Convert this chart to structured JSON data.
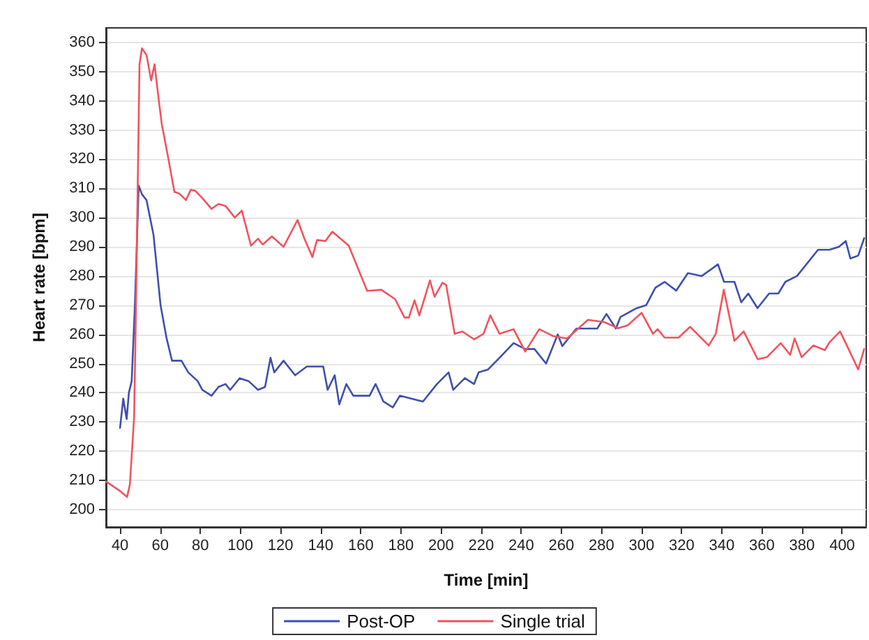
{
  "chart_data": {
    "type": "line",
    "xlabel": "Time [min]",
    "ylabel": "Heart rate [bpm]",
    "xlim": [
      33,
      412
    ],
    "xticks": [
      40,
      60,
      80,
      100,
      120,
      140,
      160,
      180,
      200,
      220,
      240,
      260,
      280,
      300,
      320,
      340,
      360,
      380,
      400
    ],
    "ylim": [
      194,
      365
    ],
    "yticks": [
      200,
      210,
      220,
      230,
      240,
      250,
      260,
      270,
      280,
      290,
      300,
      310,
      320,
      330,
      340,
      350,
      360
    ],
    "grid": "y",
    "legend": "bottom",
    "marker": "none",
    "line_style": "solid",
    "series": [
      {
        "name": "Post-OP",
        "color": "#3f4fae",
        "x": [
          40,
          41.6,
          43.3,
          44.4,
          45.8,
          47.4,
          49.3,
          50.9,
          53.2,
          56.7,
          60.2,
          63.1,
          65.9,
          70.6,
          74,
          78.7,
          81,
          85.6,
          89.1,
          92.6,
          94.9,
          99.6,
          104.1,
          108.8,
          112.3,
          115,
          116.9,
          121.5,
          127.3,
          133.1,
          141.3,
          143.5,
          147,
          149.3,
          152.8,
          156.3,
          164.4,
          167.4,
          171.3,
          176,
          179.5,
          185.2,
          191,
          198,
          203.8,
          206.1,
          211.9,
          216.5,
          218.8,
          223.5,
          229.2,
          236.2,
          242,
          246.6,
          252.4,
          258.2,
          260.5,
          267.5,
          272,
          277.9,
          282.5,
          287.2,
          289.5,
          297.6,
          302.3,
          306.9,
          311.5,
          317.3,
          323.1,
          330,
          338.1,
          341.1,
          346.3,
          349.7,
          353.2,
          357.8,
          363.6,
          368.2,
          371.7,
          377.5,
          381,
          388,
          393.7,
          398.4,
          401.8,
          404.1,
          408,
          411
        ],
        "values": [
          228,
          238,
          231,
          240,
          244,
          270,
          311,
          308,
          306,
          294,
          270,
          259,
          251,
          251,
          247,
          244,
          241,
          239,
          242,
          243,
          241,
          245,
          244,
          241,
          242,
          252,
          247,
          251,
          246,
          249,
          249,
          241,
          246,
          236,
          243,
          239,
          239,
          243,
          237,
          235,
          239,
          238,
          237,
          243,
          247,
          241,
          245,
          243,
          247,
          248,
          252,
          257,
          255,
          255,
          250,
          260,
          256,
          262,
          262,
          262,
          267,
          262,
          266,
          269,
          270,
          276,
          278,
          275,
          281,
          280,
          284,
          278,
          278,
          271,
          274,
          269,
          274,
          274,
          278,
          280,
          283,
          289,
          289,
          290,
          292,
          286,
          287,
          293
        ]
      },
      {
        "name": "Single trial",
        "color": "#f2535e",
        "x": [
          33,
          39.3,
          43.5,
          44.9,
          47,
          47.6,
          49.7,
          50.9,
          53.2,
          55.5,
          57.2,
          59,
          60.8,
          63.6,
          67.1,
          69.4,
          72.9,
          75.2,
          77.5,
          81,
          85.6,
          89.1,
          92.6,
          97.2,
          100.7,
          105.3,
          108.8,
          111.1,
          115.7,
          121.5,
          128.5,
          131.9,
          135.9,
          138.2,
          142.4,
          145.8,
          154,
          163.2,
          170.2,
          177.1,
          181.8,
          184,
          186.8,
          189.2,
          194.5,
          196.8,
          200.7,
          202.6,
          206.8,
          210.7,
          216.5,
          221.2,
          224.6,
          229.2,
          236.2,
          242,
          249,
          255.9,
          262.9,
          273.3,
          281.4,
          288.3,
          293,
          300,
          305.7,
          308,
          311.5,
          318.5,
          324.2,
          333.5,
          337,
          341,
          346.3,
          350.9,
          357.9,
          362.5,
          369.4,
          374.1,
          376.3,
          379.8,
          385.6,
          391.4,
          393.7,
          399,
          402.9,
          408,
          411
        ],
        "values": [
          209.6,
          206.7,
          204.3,
          208.6,
          231.5,
          255,
          352.5,
          358,
          355.7,
          347,
          352.5,
          342,
          332,
          322,
          308.8,
          308.3,
          306,
          309.5,
          309.2,
          306.7,
          303,
          304.7,
          304,
          300,
          302.4,
          290.4,
          292.8,
          290.8,
          293.6,
          290,
          299.2,
          292.8,
          286.5,
          292.3,
          292,
          295.2,
          290.4,
          274.9,
          275.3,
          272.1,
          265.8,
          265.8,
          271.7,
          266.5,
          278.5,
          272.9,
          277.7,
          276.9,
          260.2,
          261,
          258.3,
          260.2,
          266.5,
          260.2,
          261.8,
          254.1,
          261.8,
          259.4,
          258.6,
          265,
          264.2,
          262.1,
          263.1,
          267.4,
          260.2,
          261.8,
          258.9,
          258.9,
          262.6,
          256.2,
          260.2,
          275.3,
          257.8,
          261,
          251.5,
          252.2,
          257,
          253,
          258.6,
          252.2,
          256.2,
          254.6,
          257.3,
          261,
          255.4,
          248,
          255
        ]
      }
    ]
  }
}
